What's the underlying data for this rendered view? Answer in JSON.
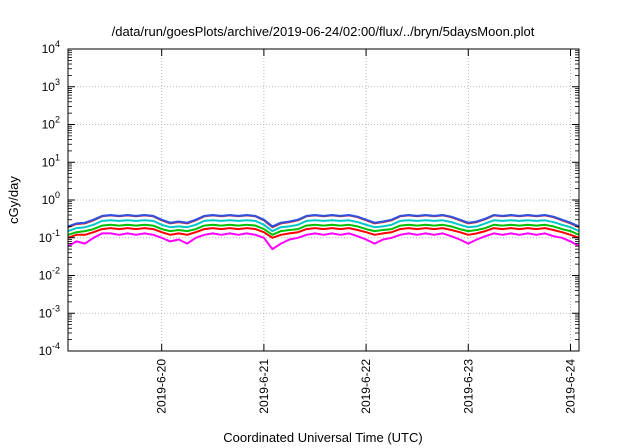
{
  "chart_data": {
    "type": "line",
    "title": "/data/run/goesPlots/archive/2019-06-24/02:00/flux/../bryn/5daysMoon.plot",
    "xlabel": "Coordinated Universal Time (UTC)",
    "ylabel": "cGy/day",
    "yscale": "log",
    "ylim": [
      0.0001,
      10000
    ],
    "xlim": [
      "2019-06-19 02:00",
      "2019-06-24 02:00"
    ],
    "grid": true,
    "legend": "none",
    "y_ticks": [
      {
        "mant": "10",
        "exp": "-4",
        "value": 0.0001
      },
      {
        "mant": "10",
        "exp": "-3",
        "value": 0.001
      },
      {
        "mant": "10",
        "exp": "-2",
        "value": 0.01
      },
      {
        "mant": "10",
        "exp": "-1",
        "value": 0.1
      },
      {
        "mant": "10",
        "exp": "0",
        "value": 1
      },
      {
        "mant": "10",
        "exp": "1",
        "value": 10
      },
      {
        "mant": "10",
        "exp": "2",
        "value": 100
      },
      {
        "mant": "10",
        "exp": "3",
        "value": 1000
      },
      {
        "mant": "10",
        "exp": "4",
        "value": 10000
      }
    ],
    "x_ticks": [
      "2019-6-20",
      "2019-6-21",
      "2019-6-22",
      "2019-6-23",
      "2019-6-24"
    ],
    "x": [
      "2019-06-19 02:00",
      "2019-06-19 04:00",
      "2019-06-19 06:00",
      "2019-06-19 08:00",
      "2019-06-19 10:00",
      "2019-06-19 12:00",
      "2019-06-19 14:00",
      "2019-06-19 16:00",
      "2019-06-19 18:00",
      "2019-06-19 20:00",
      "2019-06-19 22:00",
      "2019-06-20 00:00",
      "2019-06-20 02:00",
      "2019-06-20 04:00",
      "2019-06-20 06:00",
      "2019-06-20 08:00",
      "2019-06-20 10:00",
      "2019-06-20 12:00",
      "2019-06-20 14:00",
      "2019-06-20 16:00",
      "2019-06-20 18:00",
      "2019-06-20 20:00",
      "2019-06-20 22:00",
      "2019-06-21 00:00",
      "2019-06-21 02:00",
      "2019-06-21 04:00",
      "2019-06-21 06:00",
      "2019-06-21 08:00",
      "2019-06-21 10:00",
      "2019-06-21 12:00",
      "2019-06-21 14:00",
      "2019-06-21 16:00",
      "2019-06-21 18:00",
      "2019-06-21 20:00",
      "2019-06-21 22:00",
      "2019-06-22 00:00",
      "2019-06-22 02:00",
      "2019-06-22 04:00",
      "2019-06-22 06:00",
      "2019-06-22 08:00",
      "2019-06-22 10:00",
      "2019-06-22 12:00",
      "2019-06-22 14:00",
      "2019-06-22 16:00",
      "2019-06-22 18:00",
      "2019-06-22 20:00",
      "2019-06-22 22:00",
      "2019-06-23 00:00",
      "2019-06-23 02:00",
      "2019-06-23 04:00",
      "2019-06-23 06:00",
      "2019-06-23 08:00",
      "2019-06-23 10:00",
      "2019-06-23 12:00",
      "2019-06-23 14:00",
      "2019-06-23 16:00",
      "2019-06-23 18:00",
      "2019-06-23 20:00",
      "2019-06-23 22:00",
      "2019-06-24 00:00",
      "2019-06-24 02:00"
    ],
    "series": [
      {
        "color": "#ff00ff",
        "values": [
          0.06,
          0.08,
          0.07,
          0.1,
          0.13,
          0.13,
          0.12,
          0.13,
          0.12,
          0.13,
          0.12,
          0.1,
          0.08,
          0.09,
          0.07,
          0.1,
          0.12,
          0.13,
          0.12,
          0.13,
          0.12,
          0.13,
          0.12,
          0.1,
          0.05,
          0.07,
          0.09,
          0.1,
          0.12,
          0.13,
          0.12,
          0.13,
          0.12,
          0.13,
          0.11,
          0.09,
          0.07,
          0.09,
          0.1,
          0.12,
          0.13,
          0.12,
          0.13,
          0.12,
          0.13,
          0.11,
          0.09,
          0.07,
          0.09,
          0.11,
          0.13,
          0.12,
          0.13,
          0.12,
          0.13,
          0.12,
          0.13,
          0.11,
          0.1,
          0.08,
          0.06
        ]
      },
      {
        "color": "#ff0000",
        "values": [
          0.1,
          0.12,
          0.12,
          0.14,
          0.17,
          0.18,
          0.17,
          0.18,
          0.17,
          0.18,
          0.17,
          0.14,
          0.12,
          0.13,
          0.12,
          0.14,
          0.17,
          0.18,
          0.17,
          0.18,
          0.17,
          0.18,
          0.17,
          0.14,
          0.1,
          0.12,
          0.13,
          0.14,
          0.17,
          0.18,
          0.17,
          0.18,
          0.17,
          0.18,
          0.16,
          0.14,
          0.12,
          0.13,
          0.14,
          0.17,
          0.18,
          0.17,
          0.18,
          0.17,
          0.18,
          0.16,
          0.14,
          0.12,
          0.13,
          0.15,
          0.18,
          0.17,
          0.18,
          0.17,
          0.18,
          0.17,
          0.18,
          0.16,
          0.14,
          0.12,
          0.1
        ]
      },
      {
        "color": "#00c000",
        "values": [
          0.12,
          0.14,
          0.15,
          0.17,
          0.21,
          0.22,
          0.21,
          0.22,
          0.21,
          0.22,
          0.21,
          0.17,
          0.15,
          0.16,
          0.15,
          0.17,
          0.21,
          0.22,
          0.21,
          0.22,
          0.21,
          0.22,
          0.21,
          0.17,
          0.12,
          0.15,
          0.16,
          0.17,
          0.21,
          0.22,
          0.21,
          0.22,
          0.21,
          0.22,
          0.2,
          0.17,
          0.15,
          0.16,
          0.17,
          0.21,
          0.22,
          0.21,
          0.22,
          0.21,
          0.22,
          0.2,
          0.17,
          0.15,
          0.16,
          0.18,
          0.22,
          0.21,
          0.22,
          0.21,
          0.22,
          0.21,
          0.22,
          0.2,
          0.17,
          0.15,
          0.12
        ]
      },
      {
        "color": "#00c8c8",
        "values": [
          0.15,
          0.18,
          0.19,
          0.22,
          0.28,
          0.29,
          0.28,
          0.29,
          0.28,
          0.29,
          0.28,
          0.22,
          0.19,
          0.2,
          0.19,
          0.22,
          0.28,
          0.29,
          0.28,
          0.29,
          0.28,
          0.29,
          0.28,
          0.22,
          0.15,
          0.19,
          0.2,
          0.22,
          0.28,
          0.29,
          0.28,
          0.29,
          0.28,
          0.29,
          0.26,
          0.22,
          0.19,
          0.2,
          0.22,
          0.28,
          0.29,
          0.28,
          0.29,
          0.28,
          0.29,
          0.26,
          0.22,
          0.19,
          0.2,
          0.24,
          0.29,
          0.28,
          0.29,
          0.28,
          0.29,
          0.28,
          0.29,
          0.26,
          0.22,
          0.19,
          0.15
        ]
      },
      {
        "color": "#c03030",
        "values": [
          0.19,
          0.23,
          0.24,
          0.29,
          0.37,
          0.39,
          0.37,
          0.39,
          0.37,
          0.39,
          0.37,
          0.29,
          0.24,
          0.26,
          0.24,
          0.29,
          0.37,
          0.39,
          0.37,
          0.39,
          0.37,
          0.39,
          0.37,
          0.29,
          0.19,
          0.24,
          0.26,
          0.29,
          0.37,
          0.39,
          0.37,
          0.39,
          0.37,
          0.39,
          0.35,
          0.29,
          0.24,
          0.26,
          0.29,
          0.37,
          0.39,
          0.37,
          0.39,
          0.37,
          0.39,
          0.35,
          0.29,
          0.24,
          0.26,
          0.31,
          0.39,
          0.37,
          0.39,
          0.37,
          0.39,
          0.37,
          0.39,
          0.35,
          0.29,
          0.24,
          0.19
        ]
      },
      {
        "color": "#3050e0",
        "values": [
          0.2,
          0.24,
          0.25,
          0.3,
          0.38,
          0.4,
          0.38,
          0.4,
          0.38,
          0.4,
          0.38,
          0.3,
          0.25,
          0.27,
          0.25,
          0.3,
          0.38,
          0.4,
          0.38,
          0.4,
          0.38,
          0.4,
          0.38,
          0.3,
          0.2,
          0.25,
          0.27,
          0.3,
          0.38,
          0.4,
          0.38,
          0.4,
          0.38,
          0.4,
          0.36,
          0.3,
          0.25,
          0.27,
          0.3,
          0.38,
          0.4,
          0.38,
          0.4,
          0.38,
          0.4,
          0.36,
          0.3,
          0.25,
          0.27,
          0.32,
          0.4,
          0.38,
          0.4,
          0.38,
          0.4,
          0.38,
          0.4,
          0.36,
          0.3,
          0.25,
          0.2
        ]
      }
    ]
  }
}
